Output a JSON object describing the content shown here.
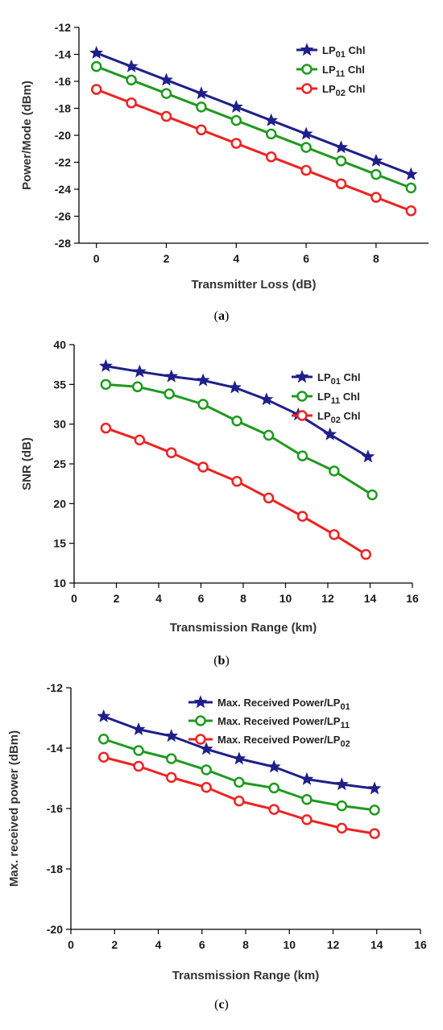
{
  "colors": {
    "LP01": "#1f1f8a",
    "LP11": "#1e9a1e",
    "LP02": "#ee2222"
  },
  "chart_data": [
    {
      "type": "line",
      "caption_letter": "a",
      "xlabel": "Transmitter Loss (dB)",
      "ylabel": "Power/Mode (dBm)",
      "xlim": [
        -0.5,
        9.5
      ],
      "ylim": [
        -28,
        -12
      ],
      "xticks": [
        0,
        2,
        4,
        6,
        8
      ],
      "yticks": [
        -12,
        -14,
        -16,
        -18,
        -20,
        -22,
        -24,
        -26,
        -28
      ],
      "legend_position": "top-right",
      "x": [
        0,
        1,
        2,
        3,
        4,
        5,
        6,
        7,
        8,
        9
      ],
      "series": [
        {
          "name": "LP01 Chl",
          "base": "LP",
          "sub": "01",
          "suffix": " Chl",
          "color_key": "LP01",
          "marker": "star",
          "values": [
            -13.9,
            -14.9,
            -15.9,
            -16.9,
            -17.9,
            -18.9,
            -19.9,
            -20.9,
            -21.9,
            -22.9
          ]
        },
        {
          "name": "LP11 Chl",
          "base": "LP",
          "sub": "11",
          "suffix": " Chl",
          "color_key": "LP11",
          "marker": "circle",
          "values": [
            -14.9,
            -15.9,
            -16.9,
            -17.9,
            -18.9,
            -19.9,
            -20.9,
            -21.9,
            -22.9,
            -23.9
          ]
        },
        {
          "name": "LP02 Chl",
          "base": "LP",
          "sub": "02",
          "suffix": " Chl",
          "color_key": "LP02",
          "marker": "circle",
          "values": [
            -16.6,
            -17.6,
            -18.6,
            -19.6,
            -20.6,
            -21.6,
            -22.6,
            -23.6,
            -24.6,
            -25.6
          ]
        }
      ]
    },
    {
      "type": "line",
      "caption_letter": "b",
      "xlabel": "Transmission Range (km)",
      "ylabel": "SNR (dB)",
      "xlim": [
        0,
        16
      ],
      "ylim": [
        10,
        40
      ],
      "xticks": [
        0,
        2,
        4,
        6,
        8,
        10,
        12,
        14,
        16
      ],
      "yticks": [
        10,
        15,
        20,
        25,
        30,
        35,
        40
      ],
      "legend_position": "top-right",
      "series": [
        {
          "name": "LP01 Chl",
          "base": "LP",
          "sub": "01",
          "suffix": " Chl",
          "color_key": "LP01",
          "marker": "star",
          "x": [
            1.5,
            3.1,
            4.6,
            6.1,
            7.6,
            9.1,
            10.6,
            12.1,
            13.9
          ],
          "values": [
            37.3,
            36.6,
            36.0,
            35.5,
            34.6,
            33.1,
            31.2,
            28.7,
            25.9
          ]
        },
        {
          "name": "LP11 Chl",
          "base": "LP",
          "sub": "11",
          "suffix": " Chl",
          "color_key": "LP11",
          "marker": "circle",
          "x": [
            1.5,
            3.0,
            4.5,
            6.1,
            7.7,
            9.2,
            10.8,
            12.3,
            14.1
          ],
          "values": [
            35.0,
            34.7,
            33.8,
            32.5,
            30.4,
            28.6,
            26.0,
            24.1,
            21.1
          ]
        },
        {
          "name": "LP02 Chl",
          "base": "LP",
          "sub": "02",
          "suffix": " Chl",
          "color_key": "LP02",
          "marker": "circle",
          "x": [
            1.5,
            3.1,
            4.6,
            6.1,
            7.7,
            9.2,
            10.8,
            12.3,
            13.8
          ],
          "values": [
            29.5,
            28.0,
            26.4,
            24.6,
            22.8,
            20.7,
            18.4,
            16.1,
            13.6
          ]
        }
      ]
    },
    {
      "type": "line",
      "caption_letter": "c",
      "xlabel": "Transmission Range (km)",
      "ylabel": "Max. received power (dBm)",
      "xlim": [
        0,
        16
      ],
      "ylim": [
        -20,
        -12
      ],
      "xticks": [
        0,
        2,
        4,
        6,
        8,
        10,
        12,
        14,
        16
      ],
      "yticks": [
        -12,
        -14,
        -16,
        -18,
        -20
      ],
      "legend_position": "top-right",
      "x": [
        1.5,
        3.1,
        4.6,
        6.2,
        7.7,
        9.3,
        10.8,
        12.4,
        13.9
      ],
      "series": [
        {
          "name": "Max. Received Power/LP01",
          "base": "Max. Received Power/LP",
          "sub": "01",
          "suffix": "",
          "color_key": "LP01",
          "marker": "star",
          "values": [
            -12.95,
            -13.38,
            -13.6,
            -14.03,
            -14.35,
            -14.62,
            -15.03,
            -15.2,
            -15.34
          ]
        },
        {
          "name": "Max. Received Power/LP11",
          "base": "Max. Received Power/LP",
          "sub": "11",
          "suffix": "",
          "color_key": "LP11",
          "marker": "circle",
          "values": [
            -13.7,
            -14.08,
            -14.35,
            -14.72,
            -15.13,
            -15.32,
            -15.7,
            -15.91,
            -16.05
          ]
        },
        {
          "name": "Max. Received Power/LP02",
          "base": "Max. Received Power/LP",
          "sub": "02",
          "suffix": "",
          "color_key": "LP02",
          "marker": "circle",
          "values": [
            -14.3,
            -14.6,
            -14.97,
            -15.3,
            -15.75,
            -16.03,
            -16.37,
            -16.65,
            -16.83
          ]
        }
      ]
    }
  ]
}
